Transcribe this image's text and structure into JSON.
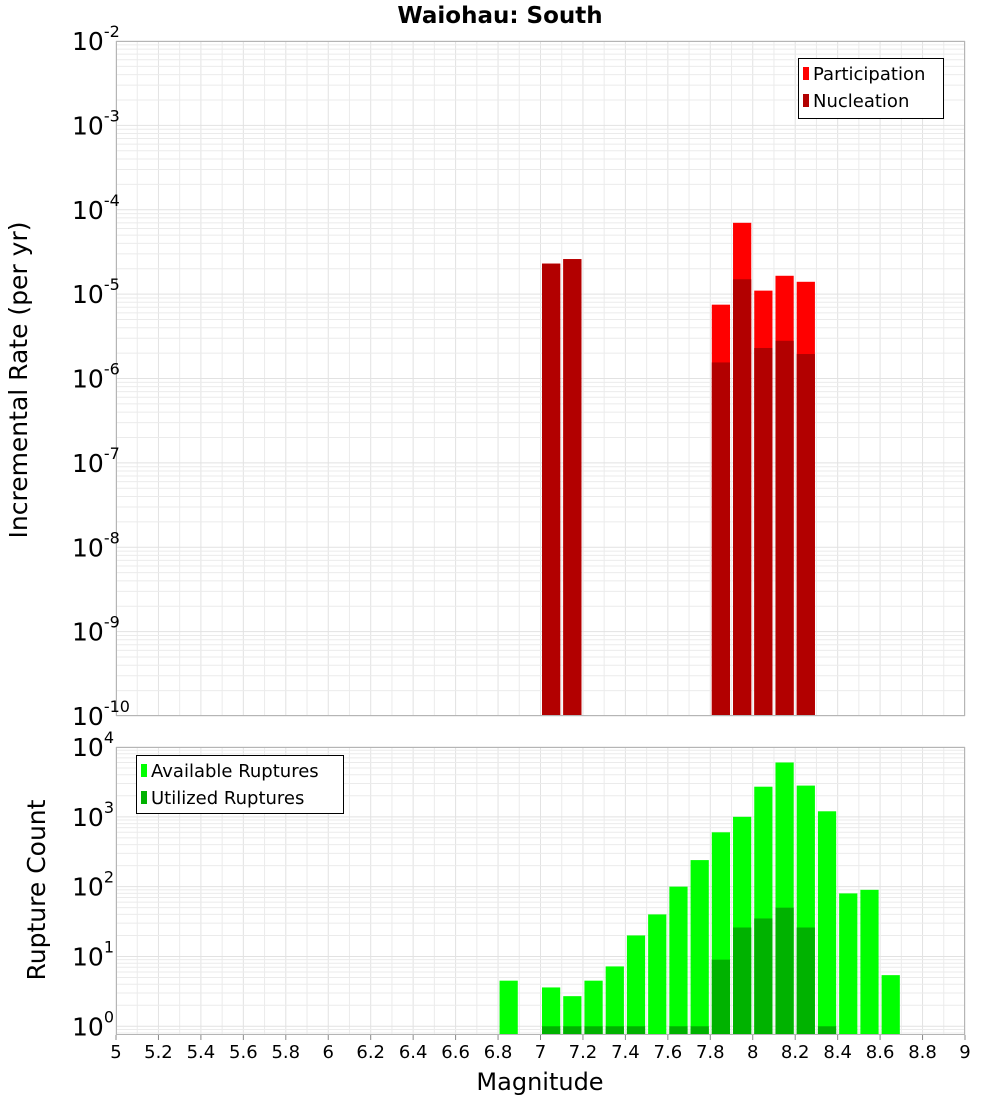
{
  "title": "Waiohau: South",
  "x_axis": {
    "label": "Magnitude",
    "range": [
      5,
      9
    ],
    "ticks": [
      "5",
      "5.2",
      "5.4",
      "5.6",
      "5.8",
      "6",
      "6.2",
      "6.4",
      "6.6",
      "6.8",
      "7",
      "7.2",
      "7.4",
      "7.6",
      "7.8",
      "8",
      "8.2",
      "8.4",
      "8.6",
      "8.8",
      "9"
    ]
  },
  "chart_data": [
    {
      "type": "bar",
      "name": "rate-chart",
      "title": "Waiohau: South",
      "xlabel": "Magnitude",
      "ylabel": "Incremental Rate (per yr)",
      "yscale": "log",
      "ylim": [
        1e-10,
        0.01
      ],
      "xlim": [
        5,
        9
      ],
      "bin_width": 0.1,
      "y_tick_exponents": [
        "-10",
        "-9",
        "-8",
        "-7",
        "-6",
        "-5",
        "-4",
        "-3",
        "-2"
      ],
      "y_tick_base": "10",
      "legend_position": "top-right",
      "series": [
        {
          "name": "Participation",
          "color": "#ff0000",
          "x": [
            7.05,
            7.15,
            7.85,
            7.95,
            8.05,
            8.15,
            8.25
          ],
          "values": [
            2.3e-05,
            2.6e-05,
            7.5e-06,
            7e-05,
            1.1e-05,
            1.65e-05,
            1.4e-05
          ]
        },
        {
          "name": "Nucleation",
          "color": "#b20000",
          "x": [
            7.05,
            7.15,
            7.85,
            7.95,
            8.05,
            8.15,
            8.25
          ],
          "values": [
            2.3e-05,
            2.6e-05,
            1.55e-06,
            1.5e-05,
            2.3e-06,
            2.8e-06,
            1.95e-06
          ]
        }
      ]
    },
    {
      "type": "bar",
      "name": "count-chart",
      "xlabel": "Magnitude",
      "ylabel": "Rupture Count",
      "yscale": "log",
      "ylim": [
        0.75,
        10000
      ],
      "xlim": [
        5,
        9
      ],
      "bin_width": 0.1,
      "y_tick_exponents": [
        "0",
        "1",
        "2",
        "3",
        "4"
      ],
      "y_tick_base": "10",
      "legend_position": "top-left",
      "series": [
        {
          "name": "Available Ruptures",
          "color": "#00ff00",
          "x": [
            6.85,
            7.05,
            7.15,
            7.25,
            7.35,
            7.45,
            7.55,
            7.65,
            7.75,
            7.85,
            7.95,
            8.05,
            8.15,
            8.25,
            8.35,
            8.45,
            8.55,
            8.65
          ],
          "values": [
            4.5,
            3.6,
            2.7,
            4.5,
            7.2,
            20,
            40,
            100,
            240,
            600,
            1000,
            2700,
            6000,
            2800,
            1200,
            80,
            90,
            5.4
          ]
        },
        {
          "name": "Utilized Ruptures",
          "color": "#00b200",
          "x": [
            7.05,
            7.15,
            7.25,
            7.35,
            7.45,
            7.65,
            7.75,
            7.85,
            7.95,
            8.05,
            8.15,
            8.25,
            8.35
          ],
          "values": [
            1,
            1,
            1,
            1,
            1,
            1,
            1,
            9,
            26,
            35,
            50,
            26,
            1
          ]
        }
      ]
    }
  ]
}
